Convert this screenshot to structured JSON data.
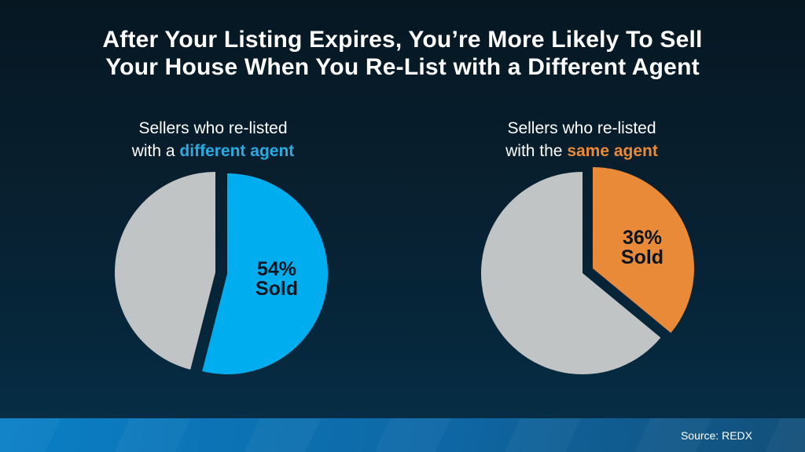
{
  "title": {
    "line1": "After Your Listing Expires, You’re More Likely To Sell",
    "line2": "Your House When You Re-List with a Different Agent"
  },
  "source": "Source: REDX",
  "colors": {
    "background_top": "#061722",
    "background_bottom": "#063049",
    "footer_band_left": "#0A80C6",
    "footer_band_right": "#134F79",
    "sold_blue": "#00AEEF",
    "sold_orange": "#E98A39",
    "remainder_gray": "#C1C4C4"
  },
  "chart_data": [
    {
      "type": "pie",
      "id": "different-agent",
      "heading": {
        "line1": "Sellers who re-listed",
        "line2_prefix": "with a ",
        "line2_highlight": "different agent",
        "highlight_color": "#29ABE2"
      },
      "start_angle_deg": 0,
      "direction": "clockwise",
      "slices": [
        {
          "name": "sold",
          "value_pct": 54,
          "color": "#00AEEF",
          "exploded": true,
          "label": {
            "line1": "54%",
            "line2": "Sold"
          }
        },
        {
          "name": "remainder",
          "value_pct": 46,
          "color": "#C1C4C4",
          "exploded": false,
          "label": null
        }
      ]
    },
    {
      "type": "pie",
      "id": "same-agent",
      "heading": {
        "line1": "Sellers who re-listed",
        "line2_prefix": "with the ",
        "line2_highlight": "same agent",
        "highlight_color": "#E98A39"
      },
      "start_angle_deg": 0,
      "direction": "clockwise",
      "slices": [
        {
          "name": "sold",
          "value_pct": 36,
          "color": "#E98A39",
          "exploded": true,
          "label": {
            "line1": "36%",
            "line2": "Sold"
          }
        },
        {
          "name": "remainder",
          "value_pct": 64,
          "color": "#C1C4C4",
          "exploded": false,
          "label": null
        }
      ]
    }
  ]
}
